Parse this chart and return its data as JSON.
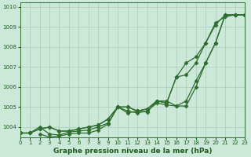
{
  "title": "Graphe pression niveau de la mer (hPa)",
  "bg_color": "#cce8d8",
  "grid_color": "#aaccbb",
  "line_color": "#2d6e2d",
  "text_color": "#1a5c1a",
  "xlim": [
    0,
    23
  ],
  "ylim": [
    1003.5,
    1010.2
  ],
  "yticks": [
    1004,
    1005,
    1006,
    1007,
    1008,
    1009,
    1010
  ],
  "xticks": [
    0,
    1,
    2,
    3,
    4,
    5,
    6,
    7,
    8,
    9,
    10,
    11,
    12,
    13,
    14,
    15,
    16,
    17,
    18,
    19,
    20,
    21,
    22,
    23
  ],
  "series": [
    {
      "x": [
        0,
        1,
        2,
        3,
        4,
        5,
        6,
        7,
        8,
        9,
        10,
        11,
        12,
        13,
        14,
        15,
        16,
        17,
        18,
        19,
        20,
        21,
        22,
        23
      ],
      "y": [
        1003.7,
        1003.7,
        1003.9,
        1004.0,
        1003.8,
        1003.8,
        1003.9,
        1004.0,
        1004.1,
        1004.4,
        1005.0,
        1005.0,
        1004.8,
        1004.9,
        1005.3,
        1005.2,
        1006.5,
        1007.2,
        1007.5,
        1008.2,
        1009.2,
        1009.5,
        1009.6,
        1009.6
      ]
    },
    {
      "x": [
        0,
        1,
        2,
        3,
        4,
        5,
        6,
        7,
        8,
        9,
        10,
        11,
        12,
        13,
        14,
        15,
        16,
        17,
        18,
        19,
        20,
        21,
        22,
        23
      ],
      "y": [
        1003.7,
        1003.7,
        1003.9,
        1004.0,
        1003.8,
        1003.8,
        1003.9,
        1004.0,
        1004.1,
        1004.4,
        1005.0,
        1005.0,
        1004.8,
        1004.9,
        1005.3,
        1005.2,
        1006.5,
        1006.6,
        1007.2,
        1008.2,
        1009.1,
        1009.6,
        1009.6,
        1009.6
      ]
    },
    {
      "x": [
        0,
        1,
        2,
        3,
        4,
        5,
        6,
        7,
        8,
        9,
        10,
        11,
        12,
        13,
        14,
        15,
        16,
        17,
        18,
        19,
        20,
        21,
        22,
        23
      ],
      "y": [
        1003.7,
        1003.7,
        1004.0,
        1003.65,
        1003.6,
        1003.75,
        1003.8,
        1003.85,
        1004.0,
        1004.2,
        1005.0,
        1004.8,
        1004.7,
        1004.8,
        1005.2,
        1005.1,
        1005.05,
        1005.3,
        1006.3,
        1007.2,
        1008.2,
        1009.6,
        1009.6,
        1009.6
      ]
    },
    {
      "x": [
        2,
        3,
        4,
        5,
        6,
        7,
        8,
        9,
        10,
        11,
        12,
        13,
        14,
        15,
        16,
        17,
        18,
        19,
        20,
        21,
        22,
        23
      ],
      "y": [
        1003.65,
        1003.5,
        1003.55,
        1003.65,
        1003.7,
        1003.7,
        1003.85,
        1004.15,
        1005.0,
        1004.7,
        1004.8,
        1004.75,
        1005.3,
        1005.3,
        1005.05,
        1005.05,
        1006.0,
        1007.2,
        1008.2,
        1009.6,
        1009.6,
        1009.6
      ]
    }
  ],
  "marker": "D",
  "marker_size": 2.5,
  "line_width": 0.9,
  "title_fontsize": 6.5,
  "tick_fontsize": 5.0
}
